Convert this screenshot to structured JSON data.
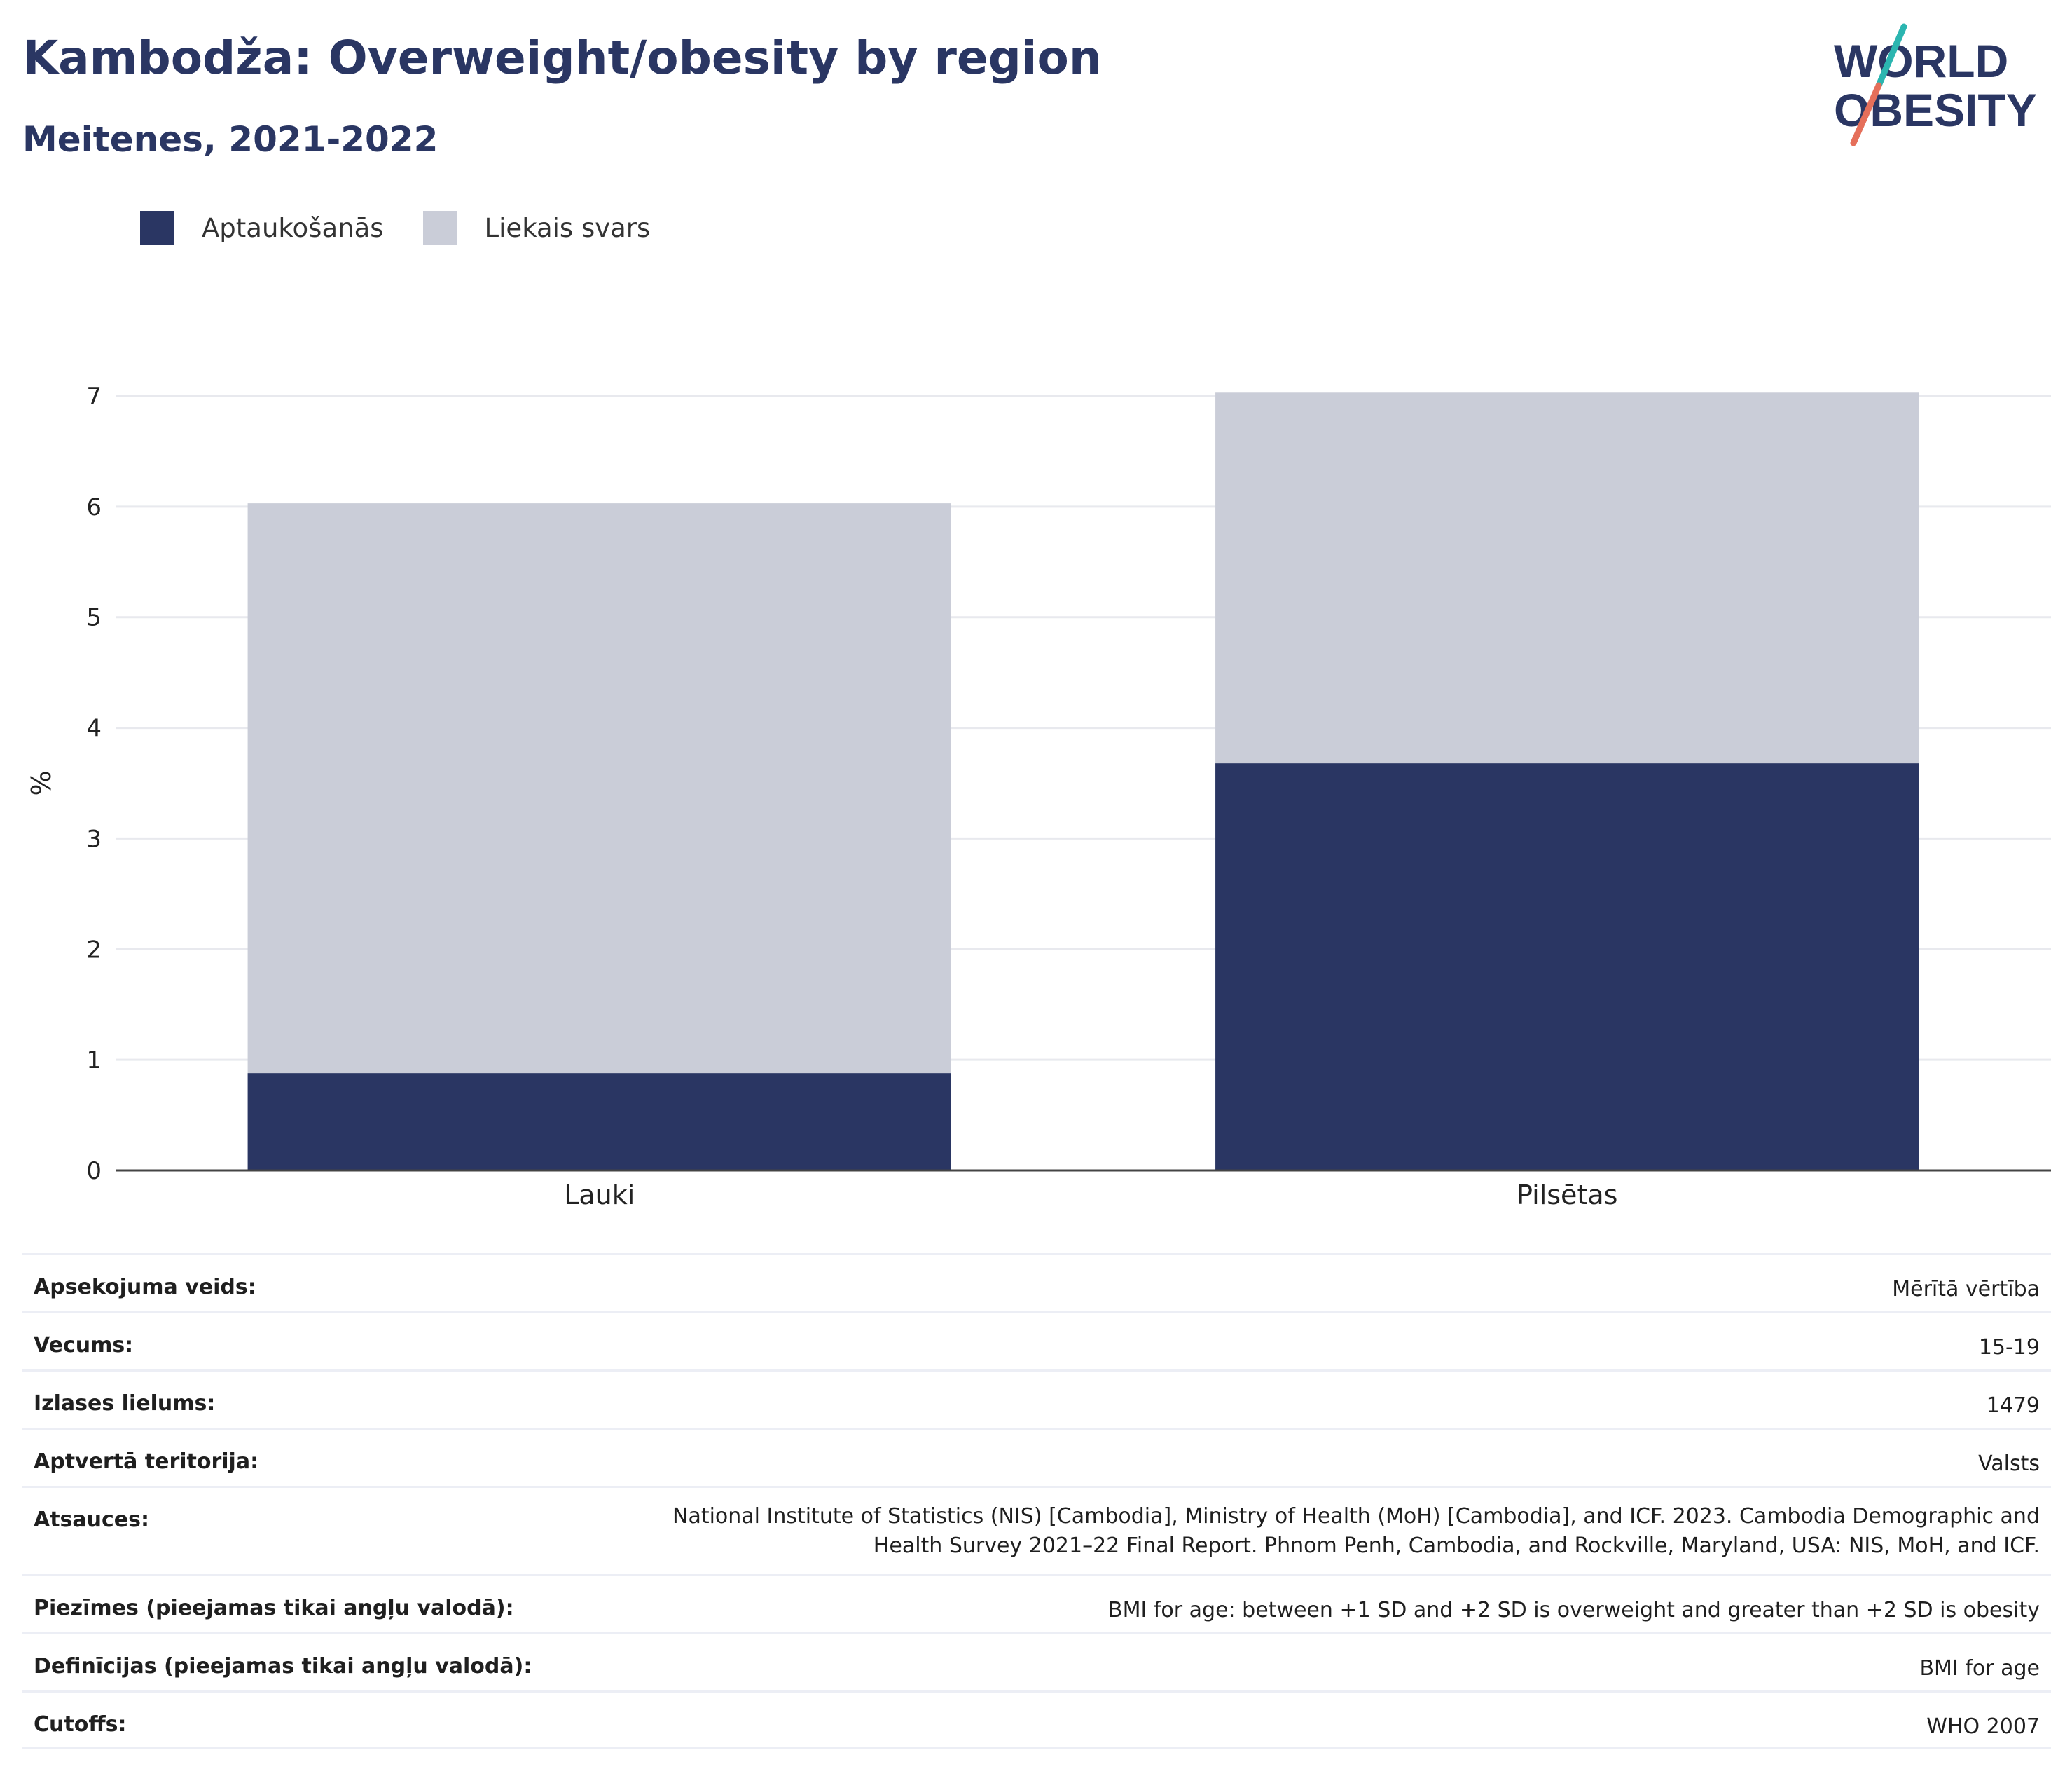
{
  "header": {
    "title": "Kambodža: Overweight/obesity by region",
    "subtitle": "Meitenes, 2021-2022"
  },
  "logo": {
    "line1": "WORLD",
    "line2": "OBESITY"
  },
  "legend": [
    {
      "label": "Aptaukošanās",
      "color": "#2a3663"
    },
    {
      "label": "Liekais svars",
      "color": "#cacdd8"
    }
  ],
  "chart_data": {
    "type": "bar",
    "stacked": true,
    "categories": [
      "Lauki",
      "Pilsētas"
    ],
    "series": [
      {
        "name": "Aptaukošanās",
        "values": [
          0.88,
          3.68
        ],
        "color": "#2a3663"
      },
      {
        "name": "Liekais svars",
        "values": [
          5.15,
          3.35
        ],
        "color": "#cacdd8"
      }
    ],
    "ylabel": "%",
    "ylim": [
      0,
      7
    ],
    "yticks": [
      0,
      1,
      2,
      3,
      4,
      5,
      6,
      7
    ],
    "grid": true,
    "legend_position": "top-left"
  },
  "info_table": [
    {
      "key": "Apsekojuma veids:",
      "value": "Mērītā vērtība"
    },
    {
      "key": "Vecums:",
      "value": "15-19"
    },
    {
      "key": "Izlases lielums:",
      "value": "1479"
    },
    {
      "key": "Aptvertā teritorija:",
      "value": "Valsts"
    },
    {
      "key": "Atsauces:",
      "value": "National Institute of Statistics (NIS) [Cambodia], Ministry of Health (MoH) [Cambodia], and ICF. 2023. Cambodia Demographic and Health Survey 2021–22 Final Report. Phnom Penh, Cambodia, and Rockville, Maryland, USA: NIS, MoH, and ICF."
    },
    {
      "key": "Piezīmes (pieejamas tikai angļu valodā):",
      "value": "BMI for age: between +1 SD and +2 SD is overweight and greater than +2 SD is obesity"
    },
    {
      "key": "Definīcijas (pieejamas tikai angļu valodā):",
      "value": "BMI for age"
    },
    {
      "key": "Cutoffs:",
      "value": "WHO 2007"
    }
  ]
}
